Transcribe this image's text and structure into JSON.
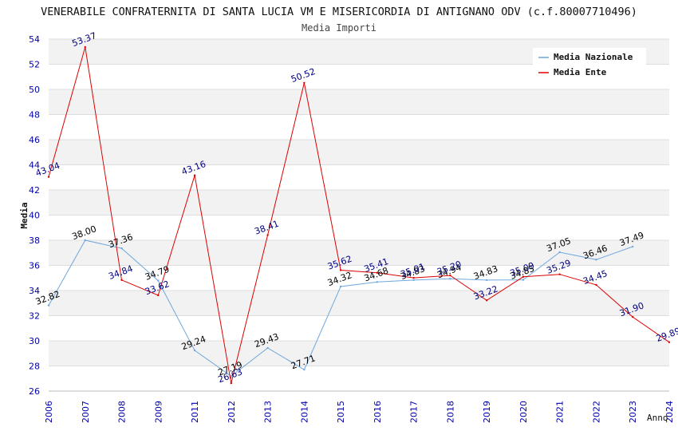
{
  "chart_data": {
    "type": "line",
    "title": "VENERABILE CONFRATERNITA DI SANTA LUCIA VM E MISERICORDIA DI ANTIGNANO ODV (c.f.80007710496)",
    "subtitle": "Media Importi",
    "xlabel": "Anno",
    "ylabel": "Media",
    "ylim": [
      26,
      54
    ],
    "yticks": [
      "26",
      "28",
      "30",
      "32",
      "34",
      "36",
      "38",
      "40",
      "42",
      "44",
      "46",
      "48",
      "50",
      "52",
      "54"
    ],
    "categories": [
      "2006",
      "2007",
      "2008",
      "2009",
      "2011",
      "2012",
      "2013",
      "2014",
      "2015",
      "2016",
      "2017",
      "2018",
      "2019",
      "2020",
      "2021",
      "2022",
      "2023",
      "2024"
    ],
    "legend_position": "top-right",
    "grid": "horizontal bands",
    "series": [
      {
        "name": "Media Nazionale",
        "color": "#6fa8dc",
        "label_color": "#000000",
        "values": [
          32.82,
          38.0,
          37.36,
          34.79,
          29.24,
          27.19,
          29.43,
          27.71,
          34.32,
          34.68,
          34.83,
          34.94,
          34.83,
          34.85,
          37.05,
          36.46,
          37.49,
          null
        ],
        "labels": [
          "32.82",
          "38.00",
          "37.36",
          "34.79",
          "29.24",
          "27.19",
          "29.43",
          "27.71",
          "34.32",
          "34.68",
          "34.83",
          "34.94",
          "34.83",
          "34.85",
          "37.05",
          "36.46",
          "37.49",
          ""
        ]
      },
      {
        "name": "Media Ente",
        "color": "#dd0000",
        "label_color": "#000080",
        "values": [
          43.04,
          53.37,
          34.84,
          33.62,
          43.16,
          26.63,
          38.41,
          50.52,
          35.62,
          35.41,
          35.01,
          35.2,
          33.22,
          35.09,
          35.29,
          34.45,
          31.9,
          29.89
        ],
        "labels": [
          "43.04",
          "53.37",
          "34.84",
          "33.62",
          "43.16",
          "26.63",
          "38.41",
          "50.52",
          "35.62",
          "35.41",
          "35.01",
          "35.20",
          "33.22",
          "35.09",
          "35.29",
          "34.45",
          "31.90",
          "29.89"
        ]
      }
    ]
  },
  "colors": {
    "band": "#f2f2f2",
    "grid": "#dddddd",
    "axis_tick_text": "#0000aa",
    "text": "#222222"
  }
}
